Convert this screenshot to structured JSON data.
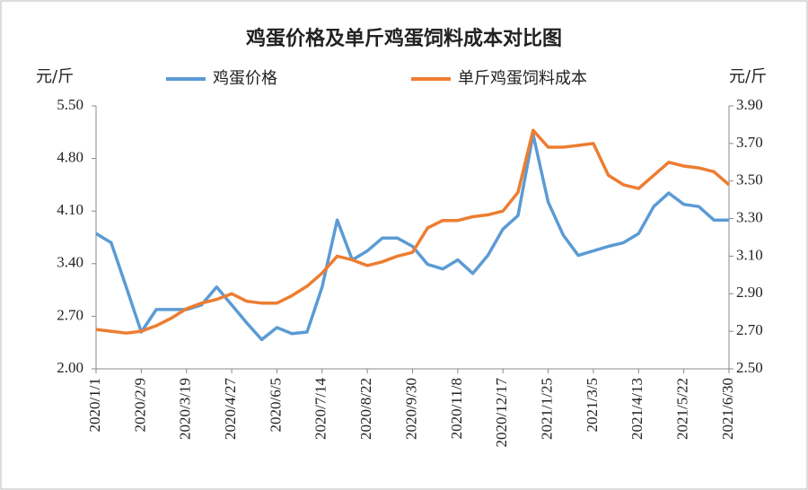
{
  "chart_data": {
    "type": "line",
    "title": "鸡蛋价格及单斤鸡蛋饲料成本对比图",
    "y_label": "元/斤",
    "y2_label": "元/斤",
    "categories": [
      "2020/1/1",
      null,
      null,
      "2020/2/9",
      null,
      null,
      "2020/3/19",
      null,
      null,
      "2020/4/27",
      null,
      null,
      "2020/6/5",
      null,
      null,
      "2020/7/14",
      null,
      null,
      "2020/8/22",
      null,
      null,
      "2020/9/30",
      null,
      null,
      "2020/11/8",
      null,
      null,
      "2020/12/17",
      null,
      null,
      "2021/1/25",
      null,
      null,
      "2021/3/5",
      null,
      null,
      "2021/4/13",
      null,
      null,
      "2021/5/22",
      null,
      null,
      "2021/6/30"
    ],
    "series": [
      {
        "name": "鸡蛋价格",
        "color": "#5b9bd5",
        "axis": "y",
        "values": [
          3.8,
          3.68,
          3.09,
          2.49,
          2.79,
          2.79,
          2.79,
          2.85,
          3.09,
          2.85,
          2.61,
          2.39,
          2.55,
          2.47,
          2.49,
          3.09,
          3.98,
          3.45,
          3.57,
          3.74,
          3.74,
          3.63,
          3.39,
          3.33,
          3.45,
          3.27,
          3.51,
          3.86,
          4.04,
          5.12,
          4.22,
          3.78,
          3.51,
          3.57,
          3.63,
          3.68,
          3.8,
          4.16,
          4.34,
          4.19,
          4.16,
          3.98,
          3.98
        ]
      },
      {
        "name": "单斤鸡蛋饲料成本",
        "color": "#ed7d31",
        "axis": "y2",
        "values": [
          2.71,
          2.7,
          2.69,
          2.7,
          2.73,
          2.77,
          2.82,
          2.85,
          2.87,
          2.9,
          2.86,
          2.85,
          2.85,
          2.89,
          2.94,
          3.01,
          3.1,
          3.08,
          3.05,
          3.07,
          3.1,
          3.12,
          3.25,
          3.29,
          3.29,
          3.31,
          3.32,
          3.34,
          3.44,
          3.77,
          3.68,
          3.68,
          3.69,
          3.7,
          3.53,
          3.48,
          3.46,
          3.53,
          3.6,
          3.58,
          3.57,
          3.55,
          3.48
        ]
      }
    ],
    "ylim": [
      2,
      5.5
    ],
    "yticks": [
      {
        "value": 2,
        "label": "2.00"
      },
      {
        "value": 2.7,
        "label": "2.70"
      },
      {
        "value": 3.4,
        "label": "3.40"
      },
      {
        "value": 4.1,
        "label": "4.10"
      },
      {
        "value": 4.8,
        "label": "4.80"
      },
      {
        "value": 5.5,
        "label": "5.50"
      }
    ],
    "y2lim": [
      2.5,
      3.9
    ],
    "y2ticks": [
      {
        "value": 2.5,
        "label": "2.50"
      },
      {
        "value": 2.7,
        "label": "2.70"
      },
      {
        "value": 2.9,
        "label": "2.90"
      },
      {
        "value": 3.1,
        "label": "3.10"
      },
      {
        "value": 3.3,
        "label": "3.30"
      },
      {
        "value": 3.5,
        "label": "3.50"
      },
      {
        "value": 3.7,
        "label": "3.70"
      },
      {
        "value": 3.9,
        "label": "3.90"
      }
    ],
    "legend": "top"
  }
}
